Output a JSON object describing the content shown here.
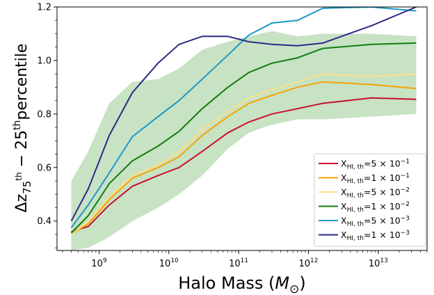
{
  "chart_data": {
    "type": "line",
    "x_scale": "log",
    "xlim": [
      250000000.0,
      50000000000000.0
    ],
    "ylim": [
      0.29,
      1.2
    ],
    "xlabel_text": "Halo Mass (",
    "xlabel_symbol": "M",
    "xlabel_sub": "⊙",
    "xlabel_close": ")",
    "ylabel_text": "Δz",
    "ylabel_sub1": "75",
    "ylabel_sup1": "th",
    "ylabel_mid": " − 25",
    "ylabel_sup2": "th",
    "ylabel_end": "percentile",
    "x_ticks": [
      {
        "value": 1000000000.0,
        "base": "10",
        "exp": "9"
      },
      {
        "value": 10000000000.0,
        "base": "10",
        "exp": "10"
      },
      {
        "value": 100000000000.0,
        "base": "10",
        "exp": "11"
      },
      {
        "value": 1000000000000.0,
        "base": "10",
        "exp": "12"
      },
      {
        "value": 10000000000000.0,
        "base": "10",
        "exp": "13"
      }
    ],
    "y_ticks": [
      {
        "value": 0.4,
        "label": "0.4"
      },
      {
        "value": 0.6,
        "label": "0.6"
      },
      {
        "value": 0.8,
        "label": "0.8"
      },
      {
        "value": 1.0,
        "label": "1.0"
      },
      {
        "value": 1.2,
        "label": "1.2"
      }
    ],
    "band": {
      "color": "#c8e2c4",
      "x": [
        400000000.0,
        700000000.0,
        1400000000.0,
        3000000000.0,
        7000000000.0,
        14000000000.0,
        30000000000.0,
        70000000000.0,
        140000000000.0,
        300000000000.0,
        700000000000.0,
        1600000000000.0,
        8000000000000.0,
        35000000000000.0
      ],
      "upper": [
        0.55,
        0.66,
        0.84,
        0.92,
        0.93,
        0.97,
        1.04,
        1.07,
        1.09,
        1.11,
        1.09,
        1.1,
        1.1,
        1.09
      ],
      "lower": [
        0.29,
        0.3,
        0.34,
        0.4,
        0.45,
        0.5,
        0.57,
        0.67,
        0.73,
        0.76,
        0.78,
        0.78,
        0.79,
        0.8
      ]
    },
    "series": [
      {
        "name_base": "X",
        "name_sub": "HI, th",
        "name_mantissa": "=5 × 10",
        "name_exp": "−1",
        "color": "#c8102e",
        "x": [
          400000000.0,
          700000000.0,
          1400000000.0,
          3000000000.0,
          7000000000.0,
          14000000000.0,
          30000000000.0,
          70000000000.0,
          140000000000.0,
          300000000000.0,
          700000000000.0,
          1600000000000.0,
          8000000000000.0,
          35000000000000.0
        ],
        "y": [
          0.36,
          0.38,
          0.46,
          0.53,
          0.57,
          0.6,
          0.66,
          0.73,
          0.77,
          0.8,
          0.82,
          0.84,
          0.86,
          0.855
        ]
      },
      {
        "name_base": "X",
        "name_sub": "HI, th",
        "name_mantissa": "=1 × 10",
        "name_exp": "−1",
        "color": "#f5a500",
        "x": [
          400000000.0,
          700000000.0,
          1400000000.0,
          3000000000.0,
          7000000000.0,
          14000000000.0,
          30000000000.0,
          70000000000.0,
          140000000000.0,
          300000000000.0,
          700000000000.0,
          1600000000000.0,
          8000000000000.0,
          35000000000000.0
        ],
        "y": [
          0.35,
          0.39,
          0.48,
          0.56,
          0.6,
          0.64,
          0.72,
          0.79,
          0.84,
          0.87,
          0.9,
          0.92,
          0.91,
          0.895
        ]
      },
      {
        "name_base": "X",
        "name_sub": "HI, th",
        "name_mantissa": "=5 × 10",
        "name_exp": "−2",
        "color": "#fde08a",
        "x": [
          400000000.0,
          700000000.0,
          1400000000.0,
          3000000000.0,
          7000000000.0,
          14000000000.0,
          30000000000.0,
          70000000000.0,
          140000000000.0,
          300000000000.0,
          700000000000.0,
          1600000000000.0,
          8000000000000.0,
          35000000000000.0
        ],
        "y": [
          0.35,
          0.4,
          0.49,
          0.57,
          0.61,
          0.66,
          0.74,
          0.81,
          0.86,
          0.89,
          0.92,
          0.95,
          0.94,
          0.95
        ]
      },
      {
        "name_base": "X",
        "name_sub": "HI, th",
        "name_mantissa": "=1 × 10",
        "name_exp": "−2",
        "color": "#0f7d0f",
        "x": [
          400000000.0,
          700000000.0,
          1400000000.0,
          3000000000.0,
          7000000000.0,
          14000000000.0,
          30000000000.0,
          70000000000.0,
          140000000000.0,
          300000000000.0,
          700000000000.0,
          1600000000000.0,
          8000000000000.0,
          35000000000000.0
        ],
        "y": [
          0.355,
          0.42,
          0.54,
          0.625,
          0.68,
          0.735,
          0.82,
          0.9,
          0.955,
          0.99,
          1.01,
          1.045,
          1.06,
          1.065
        ]
      },
      {
        "name_base": "X",
        "name_sub": "HI, th",
        "name_mantissa": "=5 × 10",
        "name_exp": "−3",
        "color": "#1a99c9",
        "x": [
          400000000.0,
          700000000.0,
          1400000000.0,
          3000000000.0,
          7000000000.0,
          14000000000.0,
          30000000000.0,
          70000000000.0,
          140000000000.0,
          300000000000.0,
          700000000000.0,
          1600000000000.0,
          8000000000000.0,
          35000000000000.0
        ],
        "y": [
          0.375,
          0.46,
          0.58,
          0.715,
          0.79,
          0.85,
          0.93,
          1.02,
          1.095,
          1.14,
          1.15,
          1.195,
          1.2,
          1.185
        ]
      },
      {
        "name_base": "X",
        "name_sub": "HI, th",
        "name_mantissa": "=1 × 10",
        "name_exp": "−3",
        "color": "#2a2a85",
        "x": [
          400000000.0,
          700000000.0,
          1400000000.0,
          3000000000.0,
          7000000000.0,
          14000000000.0,
          30000000000.0,
          70000000000.0,
          140000000000.0,
          300000000000.0,
          700000000000.0,
          1600000000000.0,
          8000000000000.0,
          35000000000000.0
        ],
        "y": [
          0.4,
          0.52,
          0.72,
          0.88,
          0.99,
          1.06,
          1.09,
          1.09,
          1.07,
          1.06,
          1.055,
          1.065,
          1.13,
          1.2
        ]
      }
    ],
    "legend_position": "lower-right",
    "grid": false
  }
}
